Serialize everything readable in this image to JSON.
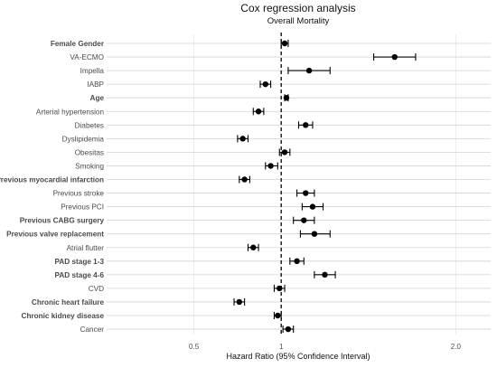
{
  "chart_data": {
    "type": "forest",
    "title": "Cox regression analysis",
    "subtitle": "Overall Mortality",
    "xlabel": "Hazard Ratio (95% Confidence Interval)",
    "xlim": [
      0.0,
      2.2
    ],
    "xticks": [
      "0.5",
      "1",
      "2.0"
    ],
    "xtick_values": [
      0.5,
      1.0,
      2.0
    ],
    "reference_line": 1.0,
    "rows": [
      {
        "label": "Female Gender",
        "bold": true,
        "hr": 1.02,
        "lo": 1.0,
        "hi": 1.04
      },
      {
        "label": "VA-ECMO",
        "bold": false,
        "hr": 1.65,
        "lo": 1.53,
        "hi": 1.77
      },
      {
        "label": "Impella",
        "bold": false,
        "hr": 1.16,
        "lo": 1.04,
        "hi": 1.28
      },
      {
        "label": "IABP",
        "bold": false,
        "hr": 0.91,
        "lo": 0.88,
        "hi": 0.94
      },
      {
        "label": "Age",
        "bold": true,
        "hr": 1.03,
        "lo": 1.02,
        "hi": 1.04
      },
      {
        "label": "Arterial hypertension",
        "bold": false,
        "hr": 0.87,
        "lo": 0.84,
        "hi": 0.9
      },
      {
        "label": "Diabetes",
        "bold": false,
        "hr": 1.14,
        "lo": 1.1,
        "hi": 1.18
      },
      {
        "label": "Dyslipidemia",
        "bold": false,
        "hr": 0.78,
        "lo": 0.75,
        "hi": 0.81
      },
      {
        "label": "Obesitas",
        "bold": false,
        "hr": 1.02,
        "lo": 0.99,
        "hi": 1.05
      },
      {
        "label": "Smoking",
        "bold": false,
        "hr": 0.94,
        "lo": 0.91,
        "hi": 0.98
      },
      {
        "label": "Previous myocardial infarction",
        "bold": true,
        "hr": 0.79,
        "lo": 0.76,
        "hi": 0.82
      },
      {
        "label": "Previous stroke",
        "bold": false,
        "hr": 1.14,
        "lo": 1.09,
        "hi": 1.19
      },
      {
        "label": "Previous PCI",
        "bold": false,
        "hr": 1.18,
        "lo": 1.12,
        "hi": 1.24
      },
      {
        "label": "Previous CABG surgery",
        "bold": true,
        "hr": 1.13,
        "lo": 1.07,
        "hi": 1.19
      },
      {
        "label": "Previous valve replacement",
        "bold": true,
        "hr": 1.19,
        "lo": 1.11,
        "hi": 1.28
      },
      {
        "label": "Atrial flutter",
        "bold": false,
        "hr": 0.84,
        "lo": 0.81,
        "hi": 0.87
      },
      {
        "label": "PAD stage 1-3",
        "bold": true,
        "hr": 1.09,
        "lo": 1.05,
        "hi": 1.13
      },
      {
        "label": "PAD stage 4-6",
        "bold": true,
        "hr": 1.25,
        "lo": 1.19,
        "hi": 1.31
      },
      {
        "label": "CVD",
        "bold": false,
        "hr": 0.99,
        "lo": 0.96,
        "hi": 1.02
      },
      {
        "label": "Chronic heart failure",
        "bold": true,
        "hr": 0.76,
        "lo": 0.73,
        "hi": 0.79
      },
      {
        "label": "Chronic kidney disease",
        "bold": true,
        "hr": 0.98,
        "lo": 0.96,
        "hi": 1.0
      },
      {
        "label": "Cancer",
        "bold": false,
        "hr": 1.04,
        "lo": 1.01,
        "hi": 1.07
      }
    ]
  }
}
